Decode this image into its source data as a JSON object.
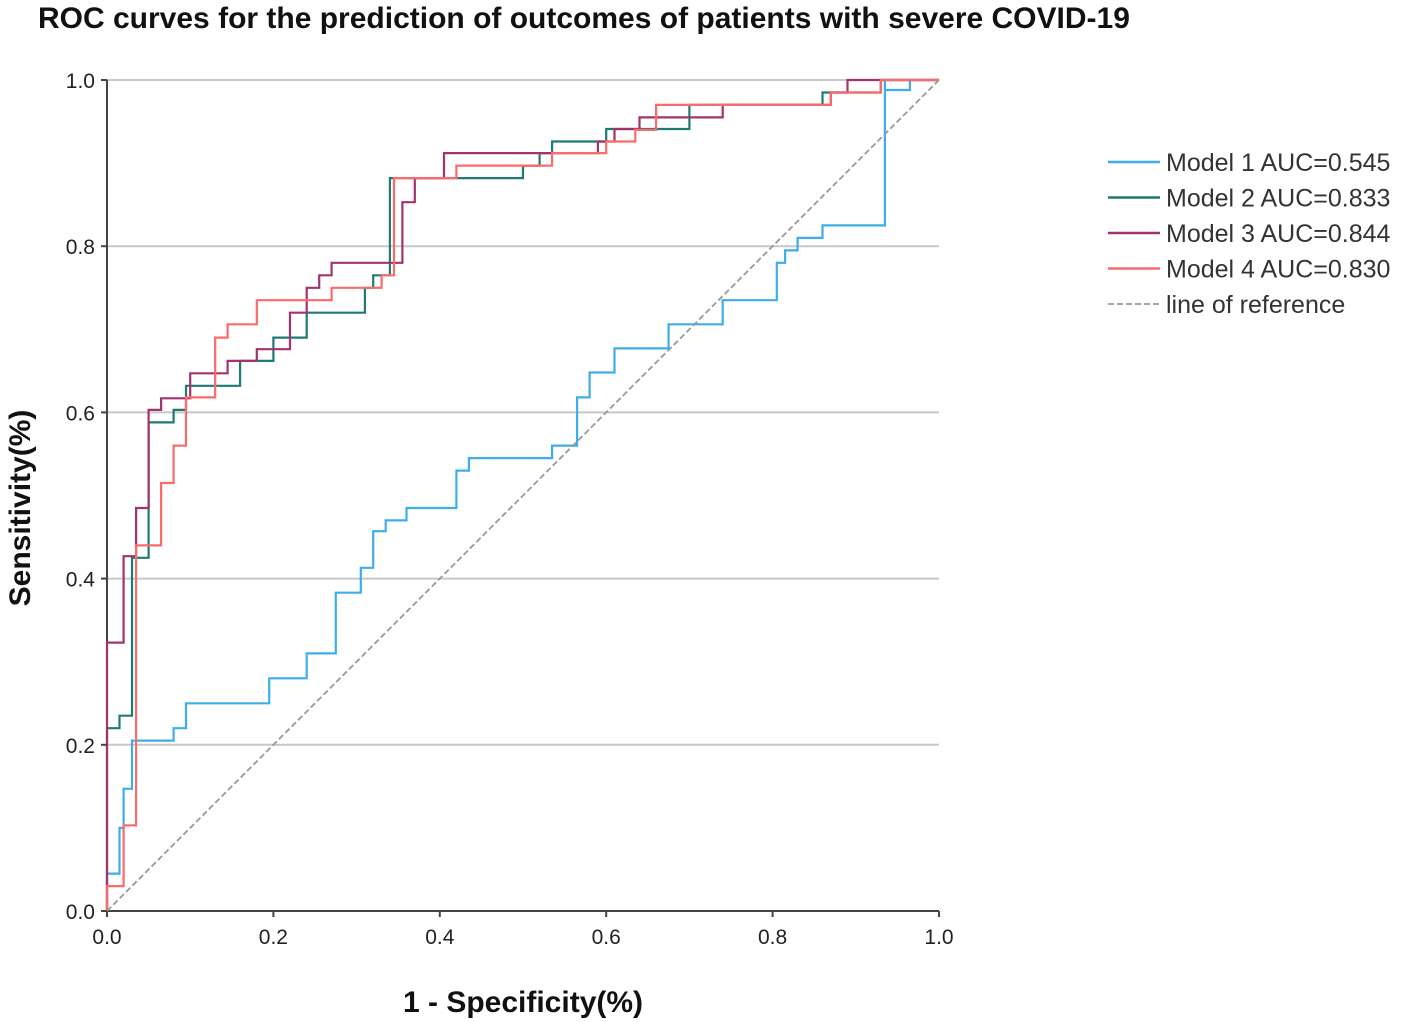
{
  "chart_data": {
    "type": "line",
    "title": "ROC curves for the prediction of outcomes of patients with severe COVID-19",
    "xlabel": "1 - Specificity(%)",
    "ylabel": "Sensitivity(%)",
    "xlim": [
      0,
      1
    ],
    "ylim": [
      0,
      1
    ],
    "x_ticks": [
      "0.0",
      "0.2",
      "0.4",
      "0.6",
      "0.8",
      "1.0"
    ],
    "y_ticks": [
      "0.0",
      "0.2",
      "0.4",
      "0.6",
      "0.8",
      "1.0"
    ],
    "grid": "horizontal",
    "legend_position": "right",
    "series": [
      {
        "name": "Model 1 AUC=0.545",
        "color": "#3daee9",
        "points": [
          [
            0,
            0
          ],
          [
            0,
            0.045
          ],
          [
            0.015,
            0.045
          ],
          [
            0.015,
            0.1
          ],
          [
            0.02,
            0.1
          ],
          [
            0.02,
            0.147
          ],
          [
            0.03,
            0.147
          ],
          [
            0.03,
            0.205
          ],
          [
            0.08,
            0.205
          ],
          [
            0.08,
            0.22
          ],
          [
            0.095,
            0.22
          ],
          [
            0.095,
            0.25
          ],
          [
            0.195,
            0.25
          ],
          [
            0.195,
            0.28
          ],
          [
            0.24,
            0.28
          ],
          [
            0.24,
            0.31
          ],
          [
            0.275,
            0.31
          ],
          [
            0.275,
            0.383
          ],
          [
            0.305,
            0.383
          ],
          [
            0.305,
            0.413
          ],
          [
            0.32,
            0.413
          ],
          [
            0.32,
            0.457
          ],
          [
            0.335,
            0.457
          ],
          [
            0.335,
            0.47
          ],
          [
            0.36,
            0.47
          ],
          [
            0.36,
            0.485
          ],
          [
            0.42,
            0.485
          ],
          [
            0.42,
            0.53
          ],
          [
            0.435,
            0.53
          ],
          [
            0.435,
            0.545
          ],
          [
            0.535,
            0.545
          ],
          [
            0.535,
            0.56
          ],
          [
            0.565,
            0.56
          ],
          [
            0.565,
            0.618
          ],
          [
            0.58,
            0.618
          ],
          [
            0.58,
            0.648
          ],
          [
            0.61,
            0.648
          ],
          [
            0.61,
            0.677
          ],
          [
            0.675,
            0.677
          ],
          [
            0.675,
            0.706
          ],
          [
            0.74,
            0.706
          ],
          [
            0.74,
            0.735
          ],
          [
            0.805,
            0.735
          ],
          [
            0.805,
            0.78
          ],
          [
            0.815,
            0.78
          ],
          [
            0.815,
            0.795
          ],
          [
            0.83,
            0.795
          ],
          [
            0.83,
            0.81
          ],
          [
            0.86,
            0.81
          ],
          [
            0.86,
            0.825
          ],
          [
            0.935,
            0.825
          ],
          [
            0.935,
            1.0
          ],
          [
            0.935,
            0.988
          ],
          [
            0.965,
            0.988
          ],
          [
            0.965,
            1.0
          ],
          [
            1,
            1
          ]
        ]
      },
      {
        "name": "Model 2 AUC=0.833",
        "color": "#1e7b74",
        "points": [
          [
            0,
            0
          ],
          [
            0,
            0.22
          ],
          [
            0.015,
            0.22
          ],
          [
            0.015,
            0.235
          ],
          [
            0.03,
            0.235
          ],
          [
            0.03,
            0.425
          ],
          [
            0.05,
            0.425
          ],
          [
            0.05,
            0.588
          ],
          [
            0.08,
            0.588
          ],
          [
            0.08,
            0.603
          ],
          [
            0.095,
            0.603
          ],
          [
            0.095,
            0.632
          ],
          [
            0.16,
            0.632
          ],
          [
            0.16,
            0.662
          ],
          [
            0.2,
            0.662
          ],
          [
            0.2,
            0.69
          ],
          [
            0.24,
            0.69
          ],
          [
            0.24,
            0.72
          ],
          [
            0.31,
            0.72
          ],
          [
            0.31,
            0.75
          ],
          [
            0.32,
            0.75
          ],
          [
            0.32,
            0.765
          ],
          [
            0.34,
            0.765
          ],
          [
            0.34,
            0.882
          ],
          [
            0.37,
            0.882
          ],
          [
            0.37,
            0.882
          ],
          [
            0.5,
            0.882
          ],
          [
            0.5,
            0.897
          ],
          [
            0.52,
            0.897
          ],
          [
            0.52,
            0.912
          ],
          [
            0.535,
            0.912
          ],
          [
            0.535,
            0.926
          ],
          [
            0.6,
            0.926
          ],
          [
            0.6,
            0.941
          ],
          [
            0.7,
            0.941
          ],
          [
            0.7,
            0.97
          ],
          [
            0.86,
            0.97
          ],
          [
            0.86,
            0.985
          ],
          [
            0.93,
            0.985
          ],
          [
            0.93,
            1.0
          ],
          [
            1,
            1
          ]
        ]
      },
      {
        "name": "Model 3 AUC=0.844",
        "color": "#a2336e",
        "points": [
          [
            0,
            0
          ],
          [
            0,
            0.323
          ],
          [
            0.02,
            0.323
          ],
          [
            0.02,
            0.427
          ],
          [
            0.035,
            0.427
          ],
          [
            0.035,
            0.485
          ],
          [
            0.05,
            0.485
          ],
          [
            0.05,
            0.603
          ],
          [
            0.065,
            0.603
          ],
          [
            0.065,
            0.617
          ],
          [
            0.1,
            0.617
          ],
          [
            0.1,
            0.647
          ],
          [
            0.145,
            0.647
          ],
          [
            0.145,
            0.662
          ],
          [
            0.18,
            0.662
          ],
          [
            0.18,
            0.676
          ],
          [
            0.22,
            0.676
          ],
          [
            0.22,
            0.72
          ],
          [
            0.24,
            0.72
          ],
          [
            0.24,
            0.75
          ],
          [
            0.255,
            0.75
          ],
          [
            0.255,
            0.765
          ],
          [
            0.27,
            0.765
          ],
          [
            0.27,
            0.78
          ],
          [
            0.355,
            0.78
          ],
          [
            0.355,
            0.853
          ],
          [
            0.37,
            0.853
          ],
          [
            0.37,
            0.882
          ],
          [
            0.405,
            0.882
          ],
          [
            0.405,
            0.912
          ],
          [
            0.59,
            0.912
          ],
          [
            0.59,
            0.926
          ],
          [
            0.61,
            0.926
          ],
          [
            0.61,
            0.941
          ],
          [
            0.64,
            0.941
          ],
          [
            0.64,
            0.955
          ],
          [
            0.74,
            0.955
          ],
          [
            0.74,
            0.97
          ],
          [
            0.87,
            0.97
          ],
          [
            0.87,
            0.985
          ],
          [
            0.89,
            0.985
          ],
          [
            0.89,
            1.0
          ],
          [
            1,
            1
          ]
        ]
      },
      {
        "name": "Model 4 AUC=0.830",
        "color": "#fc6a6a",
        "points": [
          [
            0,
            0
          ],
          [
            0,
            0.03
          ],
          [
            0.02,
            0.03
          ],
          [
            0.02,
            0.103
          ],
          [
            0.035,
            0.103
          ],
          [
            0.035,
            0.44
          ],
          [
            0.065,
            0.44
          ],
          [
            0.065,
            0.515
          ],
          [
            0.08,
            0.515
          ],
          [
            0.08,
            0.56
          ],
          [
            0.095,
            0.56
          ],
          [
            0.095,
            0.618
          ],
          [
            0.13,
            0.618
          ],
          [
            0.13,
            0.69
          ],
          [
            0.145,
            0.69
          ],
          [
            0.145,
            0.706
          ],
          [
            0.18,
            0.706
          ],
          [
            0.18,
            0.735
          ],
          [
            0.27,
            0.735
          ],
          [
            0.27,
            0.75
          ],
          [
            0.33,
            0.75
          ],
          [
            0.33,
            0.765
          ],
          [
            0.345,
            0.765
          ],
          [
            0.345,
            0.882
          ],
          [
            0.42,
            0.882
          ],
          [
            0.42,
            0.897
          ],
          [
            0.45,
            0.897
          ],
          [
            0.45,
            0.897
          ],
          [
            0.535,
            0.897
          ],
          [
            0.535,
            0.912
          ],
          [
            0.6,
            0.912
          ],
          [
            0.6,
            0.926
          ],
          [
            0.635,
            0.926
          ],
          [
            0.635,
            0.94
          ],
          [
            0.66,
            0.94
          ],
          [
            0.66,
            0.97
          ],
          [
            0.87,
            0.97
          ],
          [
            0.87,
            0.985
          ],
          [
            0.93,
            0.985
          ],
          [
            0.93,
            1.0
          ],
          [
            1,
            1
          ]
        ]
      },
      {
        "name": "line of reference",
        "color": "#999999",
        "dashed": true,
        "points": [
          [
            0,
            0
          ],
          [
            1,
            1
          ]
        ]
      }
    ]
  }
}
